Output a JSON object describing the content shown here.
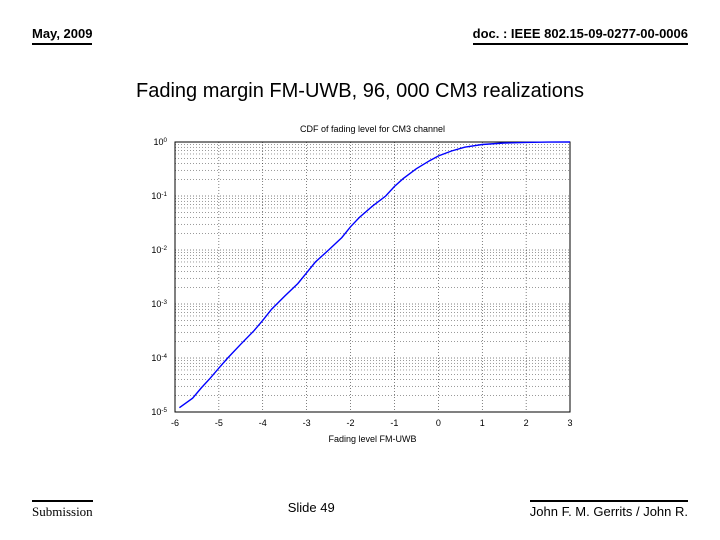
{
  "header": {
    "date": "May, 2009",
    "doc": "doc. : IEEE 802.15-09-0277-00-0006"
  },
  "title": "Fading margin FM-UWB, 96, 000 CM3 realizations",
  "footer": {
    "submission": "Submission",
    "slide": "Slide 49",
    "author": "John F. M. Gerrits / John R."
  },
  "chart": {
    "type": "line",
    "title": "CDF of fading level for CM3 channel",
    "title_fontsize": 9,
    "xlabel": "Fading level FM-UWB",
    "ylabel": "",
    "label_fontsize": 9,
    "tick_fontsize": 9,
    "background_color": "#ffffff",
    "axis_color": "#000000",
    "grid_color": "#000000",
    "grid_style": "dotted",
    "line_color": "#0000ff",
    "line_width": 1.4,
    "xlim": [
      -6,
      3
    ],
    "xtick_step": 1,
    "yscale": "log",
    "y_exponents": [
      -5,
      -4,
      -3,
      -2,
      -1,
      0
    ],
    "data_x": [
      -5.9,
      -5.6,
      -5.4,
      -5.2,
      -5.0,
      -4.8,
      -4.5,
      -4.2,
      -4.0,
      -3.8,
      -3.5,
      -3.2,
      -3.0,
      -2.8,
      -2.5,
      -2.2,
      -2.0,
      -1.8,
      -1.5,
      -1.2,
      -1.0,
      -0.8,
      -0.5,
      -0.2,
      0.0,
      0.3,
      0.6,
      1.0,
      1.5,
      2.0,
      2.5,
      3.0
    ],
    "data_y": [
      1.2e-05,
      1.8e-05,
      2.8e-05,
      4.2e-05,
      6.5e-05,
      0.0001,
      0.00018,
      0.00032,
      0.0005,
      0.0008,
      0.0014,
      0.0024,
      0.0038,
      0.006,
      0.01,
      0.017,
      0.027,
      0.04,
      0.065,
      0.1,
      0.15,
      0.21,
      0.32,
      0.45,
      0.55,
      0.68,
      0.8,
      0.9,
      0.96,
      0.985,
      0.995,
      1.0
    ]
  }
}
